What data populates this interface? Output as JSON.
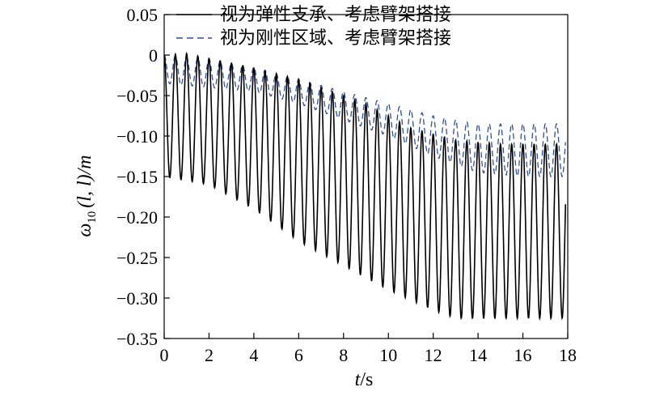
{
  "chart_data": {
    "type": "line",
    "title": "",
    "xlabel_italic": "t",
    "xlabel_rest": "/s",
    "ylabel_main": "ω",
    "ylabel_sub": "10",
    "ylabel_rest": "(l, l)/m",
    "xlim": [
      0,
      18
    ],
    "ylim": [
      -0.35,
      0.05
    ],
    "x_ticks": [
      0,
      2,
      4,
      6,
      8,
      10,
      12,
      14,
      16,
      18
    ],
    "y_ticks": [
      0.05,
      0,
      -0.05,
      -0.1,
      -0.15,
      -0.2,
      -0.25,
      -0.3,
      -0.35
    ],
    "x_tick_labels": [
      "0",
      "2",
      "4",
      "6",
      "8",
      "10",
      "12",
      "14",
      "16",
      "18"
    ],
    "y_tick_labels": [
      "0.05",
      "0",
      "−0.05",
      "−0.10",
      "−0.15",
      "−0.20",
      "−0.25",
      "−0.30",
      "−0.35"
    ],
    "grid": false,
    "legend_position": "top-right",
    "series": [
      {
        "name": "视为弹性支承、考虑臂架搭接",
        "style": "solid",
        "color": "#000000",
        "period": 0.5,
        "x_end": 17.9,
        "upper_envelope": {
          "x": [
            0,
            1.0,
            3,
            6,
            9,
            11,
            13,
            15,
            17,
            17.9
          ],
          "y": [
            0.0,
            0.002,
            -0.01,
            -0.03,
            -0.06,
            -0.09,
            -0.105,
            -0.11,
            -0.11,
            -0.11
          ]
        },
        "lower_envelope": {
          "x": [
            0,
            2,
            4,
            6,
            8,
            10,
            12,
            13,
            15,
            17,
            17.9
          ],
          "y": [
            -0.15,
            -0.16,
            -0.19,
            -0.23,
            -0.26,
            -0.29,
            -0.315,
            -0.325,
            -0.325,
            -0.325,
            -0.325
          ]
        }
      },
      {
        "name": "视为刚性区域、考虑臂架搭接",
        "style": "dashed",
        "color": "#2f4f9f",
        "period": 0.5,
        "x_end": 17.9,
        "upper_envelope": {
          "x": [
            0,
            2,
            4,
            6,
            8,
            10,
            12,
            14,
            16,
            17.9
          ],
          "y": [
            0.0,
            -0.005,
            -0.015,
            -0.03,
            -0.045,
            -0.06,
            -0.075,
            -0.085,
            -0.085,
            -0.085
          ]
        },
        "lower_envelope": {
          "x": [
            0,
            2,
            4,
            6,
            8,
            10,
            12,
            14,
            16,
            17.9
          ],
          "y": [
            -0.035,
            -0.04,
            -0.045,
            -0.06,
            -0.08,
            -0.1,
            -0.125,
            -0.145,
            -0.15,
            -0.15
          ]
        }
      }
    ]
  }
}
